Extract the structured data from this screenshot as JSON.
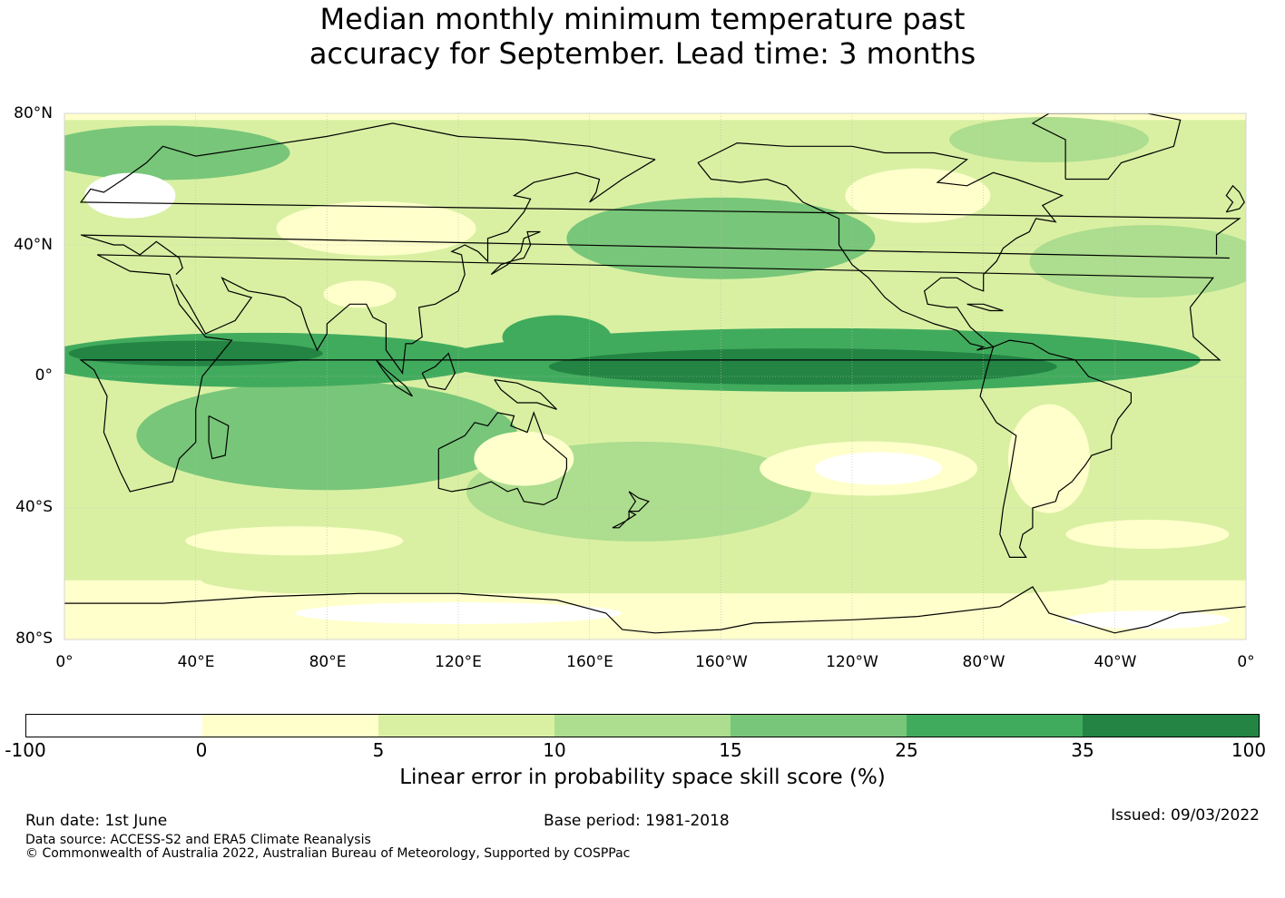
{
  "title": {
    "line1": "Median monthly minimum temperature past",
    "line2": "accuracy for September. Lead time: 3 months"
  },
  "map": {
    "lat_labels": [
      "80°N",
      "40°N",
      "0°",
      "40°S",
      "80°S"
    ],
    "lon_labels": [
      "0°",
      "40°E",
      "80°E",
      "120°E",
      "160°E",
      "160°W",
      "120°W",
      "80°W",
      "40°W",
      "0°"
    ],
    "colors": {
      "ocean_and_land_shade": "#ffffff",
      "coastline": "#000000",
      "gridline": "#bbbbbb"
    }
  },
  "colorbar": {
    "tick_labels": [
      "-100",
      "0",
      "5",
      "10",
      "15",
      "25",
      "35",
      "100"
    ],
    "colors": [
      "#ffffff",
      "#ffffcc",
      "#d9f0a3",
      "#addd8e",
      "#78c679",
      "#41ab5d",
      "#238443"
    ],
    "title": "Linear error in probability space skill score (%)"
  },
  "footer": {
    "run_date": "Run date: 1st June",
    "base_period": "Base period: 1981-2018",
    "issued": "Issued: 09/03/2022",
    "data_source": "Data source: ACCESS-S2 and ERA5 Climate Reanalysis",
    "copyright": "© Commonwealth of Australia 2022, Australian Bureau of Meteorology, Supported by COSPPac"
  }
}
